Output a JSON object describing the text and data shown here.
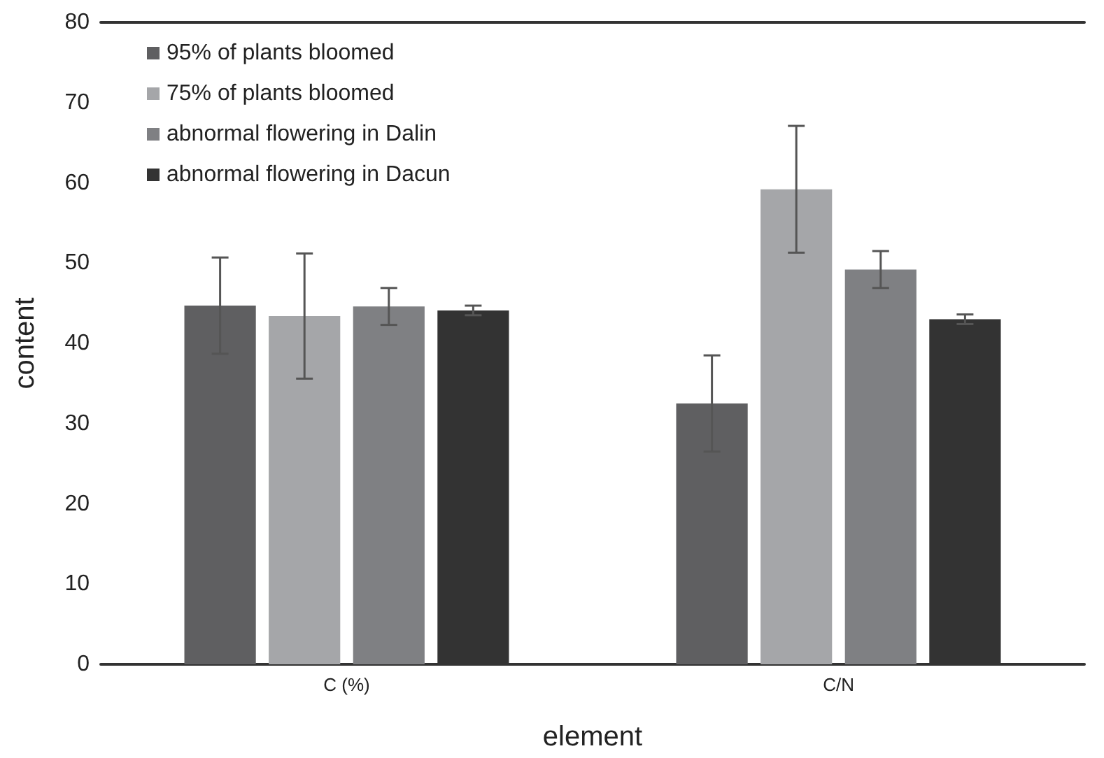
{
  "chart_data": {
    "type": "bar",
    "xlabel": "element",
    "ylabel": "content",
    "categories": [
      "C (%)",
      "C/N"
    ],
    "series": [
      {
        "name": "95% of plants bloomed",
        "color": "#5f5f61",
        "values": [
          44.7,
          32.5
        ],
        "errors": [
          6,
          6
        ]
      },
      {
        "name": "75% of plants bloomed",
        "color": "#a5a6a9",
        "values": [
          43.4,
          59.2
        ],
        "errors": [
          7.8,
          7.9
        ]
      },
      {
        "name": "abnormal flowering in Dalin",
        "color": "#7f8083",
        "values": [
          44.6,
          49.2
        ],
        "errors": [
          2.3,
          2.3
        ]
      },
      {
        "name": "abnormal flowering in Dacun",
        "color": "#333333",
        "values": [
          44.1,
          43.0
        ],
        "errors": [
          0.6,
          0.6
        ]
      }
    ],
    "ylim": [
      0,
      80
    ],
    "yticks": [
      0,
      10,
      20,
      30,
      40,
      50,
      60,
      70,
      80
    ],
    "grid": false,
    "legend": "top left"
  }
}
